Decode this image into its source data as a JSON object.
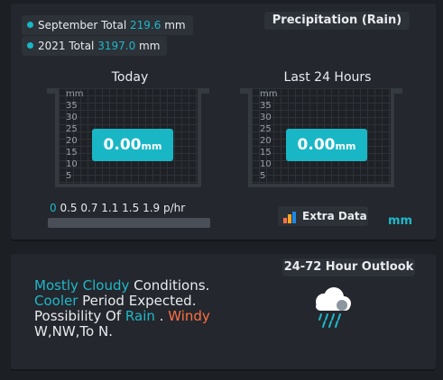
{
  "totals": {
    "september": {
      "label": "September Total",
      "value": "219.6",
      "unit": "mm"
    },
    "year": {
      "label": "2021 Total",
      "value": "3197.0",
      "unit": "mm"
    }
  },
  "header": {
    "title": "Precipitation (Rain)"
  },
  "gauges": {
    "today": {
      "title": "Today",
      "value": "0.00",
      "unit": "mm",
      "fill": 0.0
    },
    "last24": {
      "title": "Last 24 Hours",
      "value": "0.00",
      "unit": "mm",
      "fill": 0.0
    },
    "scale": [
      "mm",
      "35",
      "30",
      "25",
      "20",
      "15",
      "10",
      "5"
    ]
  },
  "rate": {
    "first": "0",
    "rest": "0.5 0.7 1.1 1.5 1.9 p/hr",
    "level": 0.0
  },
  "extra": {
    "label": "Extra Data",
    "icon": "bar-chart-icon"
  },
  "unit_label": "mm",
  "outlook": {
    "title": "24-72 Hour Outlook",
    "icon": "rain-cloud-icon",
    "line1": {
      "a": "Mostly Cloudy",
      "b": " Conditions."
    },
    "line2": {
      "a": "Cooler",
      "b": " Period Expected."
    },
    "line3": {
      "a": "Possibility Of ",
      "b": "Rain",
      "c": " . ",
      "d": "Windy"
    },
    "line4": "W,NW,To N."
  },
  "colors": {
    "accent": "#19b7c6",
    "wind": "#ff7043",
    "background": "#1c1f24",
    "panel": "#24272d"
  }
}
